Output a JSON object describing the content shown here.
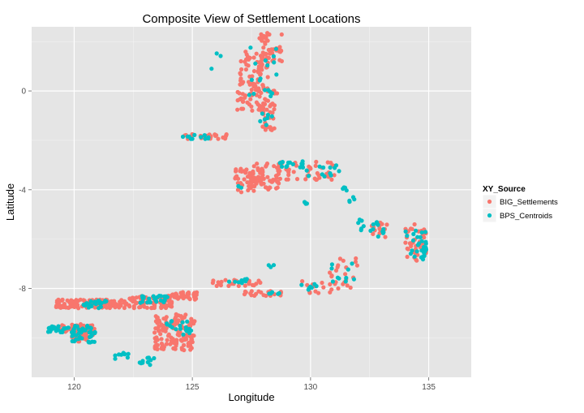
{
  "chart_data": {
    "type": "scatter",
    "title": "Composite View of Settlement Locations",
    "xlabel": "Longitude",
    "ylabel": "Latitude",
    "xlim": [
      118.2,
      136.8
    ],
    "ylim": [
      -11.6,
      2.6
    ],
    "x_ticks": [
      120,
      125,
      130,
      135
    ],
    "y_ticks": [
      0,
      -4,
      -8
    ],
    "grid": true,
    "legend": {
      "title": "XY_Source",
      "position": "right",
      "entries": [
        "BIG_Settlements",
        "BPS_Centroids"
      ]
    },
    "colors": {
      "BIG_Settlements": "#F8766D",
      "BPS_Centroids": "#00BFC4",
      "panel": "#E5E5E5",
      "grid_major": "#FFFFFF",
      "grid_minor": "#F2F2F2"
    },
    "series": [
      {
        "name": "BIG_Settlements",
        "clusters": [
          {
            "x": [
              119.2,
              120.9
            ],
            "y": [
              -9.8,
              -9.45
            ],
            "n": 40
          },
          {
            "x": [
              119.9,
              120.8
            ],
            "y": [
              -10.15,
              -9.6
            ],
            "n": 40
          },
          {
            "x": [
              119.2,
              122.2
            ],
            "y": [
              -8.8,
              -8.45
            ],
            "n": 120
          },
          {
            "x": [
              122.2,
              124.2
            ],
            "y": [
              -8.8,
              -8.3
            ],
            "n": 80
          },
          {
            "x": [
              124.0,
              125.2
            ],
            "y": [
              -8.45,
              -8.15
            ],
            "n": 40
          },
          {
            "x": [
              123.4,
              125.1
            ],
            "y": [
              -10.5,
              -9.0
            ],
            "n": 130
          },
          {
            "x": [
              124.6,
              126.5
            ],
            "y": [
              -1.95,
              -1.75
            ],
            "n": 30
          },
          {
            "x": [
              126.8,
              128.0
            ],
            "y": [
              -4.1,
              -3.1
            ],
            "n": 45
          },
          {
            "x": [
              127.4,
              128.7
            ],
            "y": [
              -4.0,
              -2.9
            ],
            "n": 60
          },
          {
            "x": [
              128.6,
              131.2
            ],
            "y": [
              -3.6,
              -2.85
            ],
            "n": 45
          },
          {
            "x": [
              126.9,
              128.2
            ],
            "y": [
              -0.8,
              1.6
            ],
            "n": 110
          },
          {
            "x": [
              127.8,
              128.8
            ],
            "y": [
              1.2,
              2.45
            ],
            "n": 45
          },
          {
            "x": [
              127.9,
              128.5
            ],
            "y": [
              -1.6,
              -0.5
            ],
            "n": 30
          },
          {
            "x": [
              128.4,
              128.8
            ],
            "y": [
              -0.15,
              0.05
            ],
            "n": 4
          },
          {
            "x": [
              125.8,
              128.0
            ],
            "y": [
              -7.9,
              -7.65
            ],
            "n": 25
          },
          {
            "x": [
              127.0,
              128.8
            ],
            "y": [
              -8.3,
              -8.1
            ],
            "n": 22
          },
          {
            "x": [
              129.6,
              130.6
            ],
            "y": [
              -8.2,
              -7.7
            ],
            "n": 12
          },
          {
            "x": [
              130.8,
              132.0
            ],
            "y": [
              -8.3,
              -6.7
            ],
            "n": 25
          },
          {
            "x": [
              132.5,
              133.3
            ],
            "y": [
              -5.95,
              -5.3
            ],
            "n": 15
          },
          {
            "x": [
              134.0,
              134.9
            ],
            "y": [
              -6.9,
              -5.4
            ],
            "n": 40
          }
        ]
      },
      {
        "name": "BPS_Centroids",
        "clusters": [
          {
            "x": [
              118.9,
              120.9
            ],
            "y": [
              -9.8,
              -9.5
            ],
            "n": 45
          },
          {
            "x": [
              119.8,
              120.9
            ],
            "y": [
              -10.2,
              -9.7
            ],
            "n": 25
          },
          {
            "x": [
              120.4,
              121.6
            ],
            "y": [
              -8.8,
              -8.5
            ],
            "n": 25
          },
          {
            "x": [
              121.7,
              122.3
            ],
            "y": [
              -10.85,
              -10.6
            ],
            "n": 10
          },
          {
            "x": [
              122.7,
              123.6
            ],
            "y": [
              -11.1,
              -10.8
            ],
            "n": 10
          },
          {
            "x": [
              122.8,
              124.0
            ],
            "y": [
              -8.6,
              -8.3
            ],
            "n": 25
          },
          {
            "x": [
              123.9,
              125.0
            ],
            "y": [
              -9.9,
              -9.3
            ],
            "n": 18
          },
          {
            "x": [
              124.5,
              125.8
            ],
            "y": [
              -1.95,
              -1.75
            ],
            "n": 12
          },
          {
            "x": [
              126.0,
              126.2
            ],
            "y": [
              1.4,
              1.55
            ],
            "n": 2
          },
          {
            "x": [
              125.8,
              126.0
            ],
            "y": [
              0.9,
              1.0
            ],
            "n": 1
          },
          {
            "x": [
              127.3,
              128.6
            ],
            "y": [
              -0.3,
              1.8
            ],
            "n": 18
          },
          {
            "x": [
              127.7,
              128.4
            ],
            "y": [
              -1.4,
              -0.9
            ],
            "n": 7
          },
          {
            "x": [
              128.7,
              129.7
            ],
            "y": [
              -3.1,
              -2.85
            ],
            "n": 15
          },
          {
            "x": [
              126.9,
              127.1
            ],
            "y": [
              -3.95,
              -3.85
            ],
            "n": 3
          },
          {
            "x": [
              129.7,
              131.3
            ],
            "y": [
              -3.5,
              -3.0
            ],
            "n": 12
          },
          {
            "x": [
              131.3,
              131.6
            ],
            "y": [
              -4.1,
              -3.9
            ],
            "n": 4
          },
          {
            "x": [
              129.7,
              130.0
            ],
            "y": [
              -4.6,
              -4.5
            ],
            "n": 4
          },
          {
            "x": [
              131.6,
              132.0
            ],
            "y": [
              -4.6,
              -4.3
            ],
            "n": 4
          },
          {
            "x": [
              132.0,
              132.3
            ],
            "y": [
              -5.7,
              -5.2
            ],
            "n": 6
          },
          {
            "x": [
              132.5,
              133.1
            ],
            "y": [
              -5.9,
              -5.3
            ],
            "n": 12
          },
          {
            "x": [
              134.0,
              134.9
            ],
            "y": [
              -6.9,
              -5.5
            ],
            "n": 30
          },
          {
            "x": [
              130.8,
              131.9
            ],
            "y": [
              -7.8,
              -6.9
            ],
            "n": 10
          },
          {
            "x": [
              129.6,
              130.3
            ],
            "y": [
              -8.1,
              -7.8
            ],
            "n": 8
          },
          {
            "x": [
              126.5,
              127.4
            ],
            "y": [
              -7.8,
              -7.6
            ],
            "n": 8
          },
          {
            "x": [
              128.2,
              128.5
            ],
            "y": [
              -7.15,
              -7.0
            ],
            "n": 3
          },
          {
            "x": [
              128.1,
              128.7
            ],
            "y": [
              -8.25,
              -8.15
            ],
            "n": 5
          }
        ]
      }
    ]
  }
}
